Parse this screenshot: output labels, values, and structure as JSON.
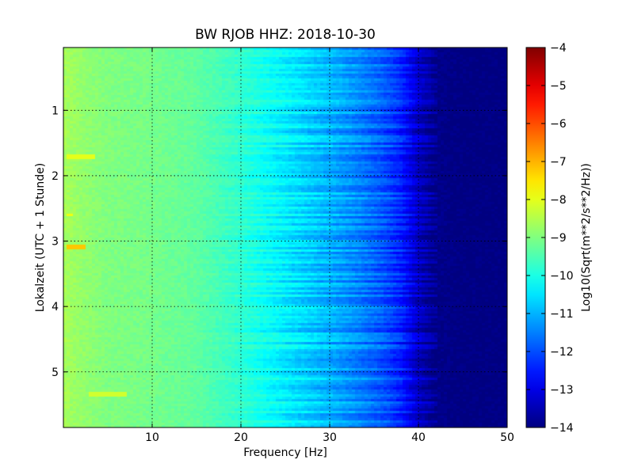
{
  "chart_data": {
    "type": "heatmap",
    "title": "BW RJOB HHZ: 2018-10-30",
    "xlabel": "Frequency [Hz]",
    "ylabel": "Lokalzeit (UTC + 1 Stunde)",
    "xlim": [
      0,
      50
    ],
    "ylim": [
      5.85,
      0.04
    ],
    "x_ticks": [
      "10",
      "20",
      "30",
      "40",
      "50"
    ],
    "x_tick_values": [
      10,
      20,
      30,
      40,
      50
    ],
    "y_ticks": [
      "1",
      "2",
      "3",
      "4",
      "5"
    ],
    "y_tick_values": [
      1,
      2,
      3,
      4,
      5
    ],
    "grid": "dotted",
    "colormap": "jet",
    "colorbar": {
      "label": "Log10(Sqrt(m**2/s**2/Hz))",
      "range": [
        -14,
        -4
      ],
      "ticks": [
        "−4",
        "−5",
        "−6",
        "−7",
        "−8",
        "−9",
        "−10",
        "−11",
        "−12",
        "−13",
        "−14"
      ],
      "tick_values": [
        -4,
        -5,
        -6,
        -7,
        -8,
        -9,
        -10,
        -11,
        -12,
        -13,
        -14
      ]
    },
    "spectrum_profile": {
      "frequency_hz": [
        0,
        2,
        5,
        10,
        15,
        20,
        25,
        30,
        33,
        36,
        38,
        40,
        42,
        45,
        50
      ],
      "level": [
        -8.6,
        -8.8,
        -9.0,
        -9.1,
        -9.3,
        -9.8,
        -10.4,
        -11.0,
        -11.4,
        -11.9,
        -12.4,
        -13.3,
        -13.9,
        -14,
        -14
      ]
    },
    "notable_features": [
      {
        "frequency_hz": [
          0.5,
          3.5
        ],
        "time": 1.72,
        "level": -8.0
      },
      {
        "frequency_hz": [
          0.5,
          1.2
        ],
        "time": 2.6,
        "level": -7.9
      },
      {
        "frequency_hz": [
          0.5,
          2.5
        ],
        "time": 3.1,
        "level": -7.2
      },
      {
        "frequency_hz": [
          3,
          7
        ],
        "time": 5.35,
        "level": -8.2
      }
    ]
  }
}
